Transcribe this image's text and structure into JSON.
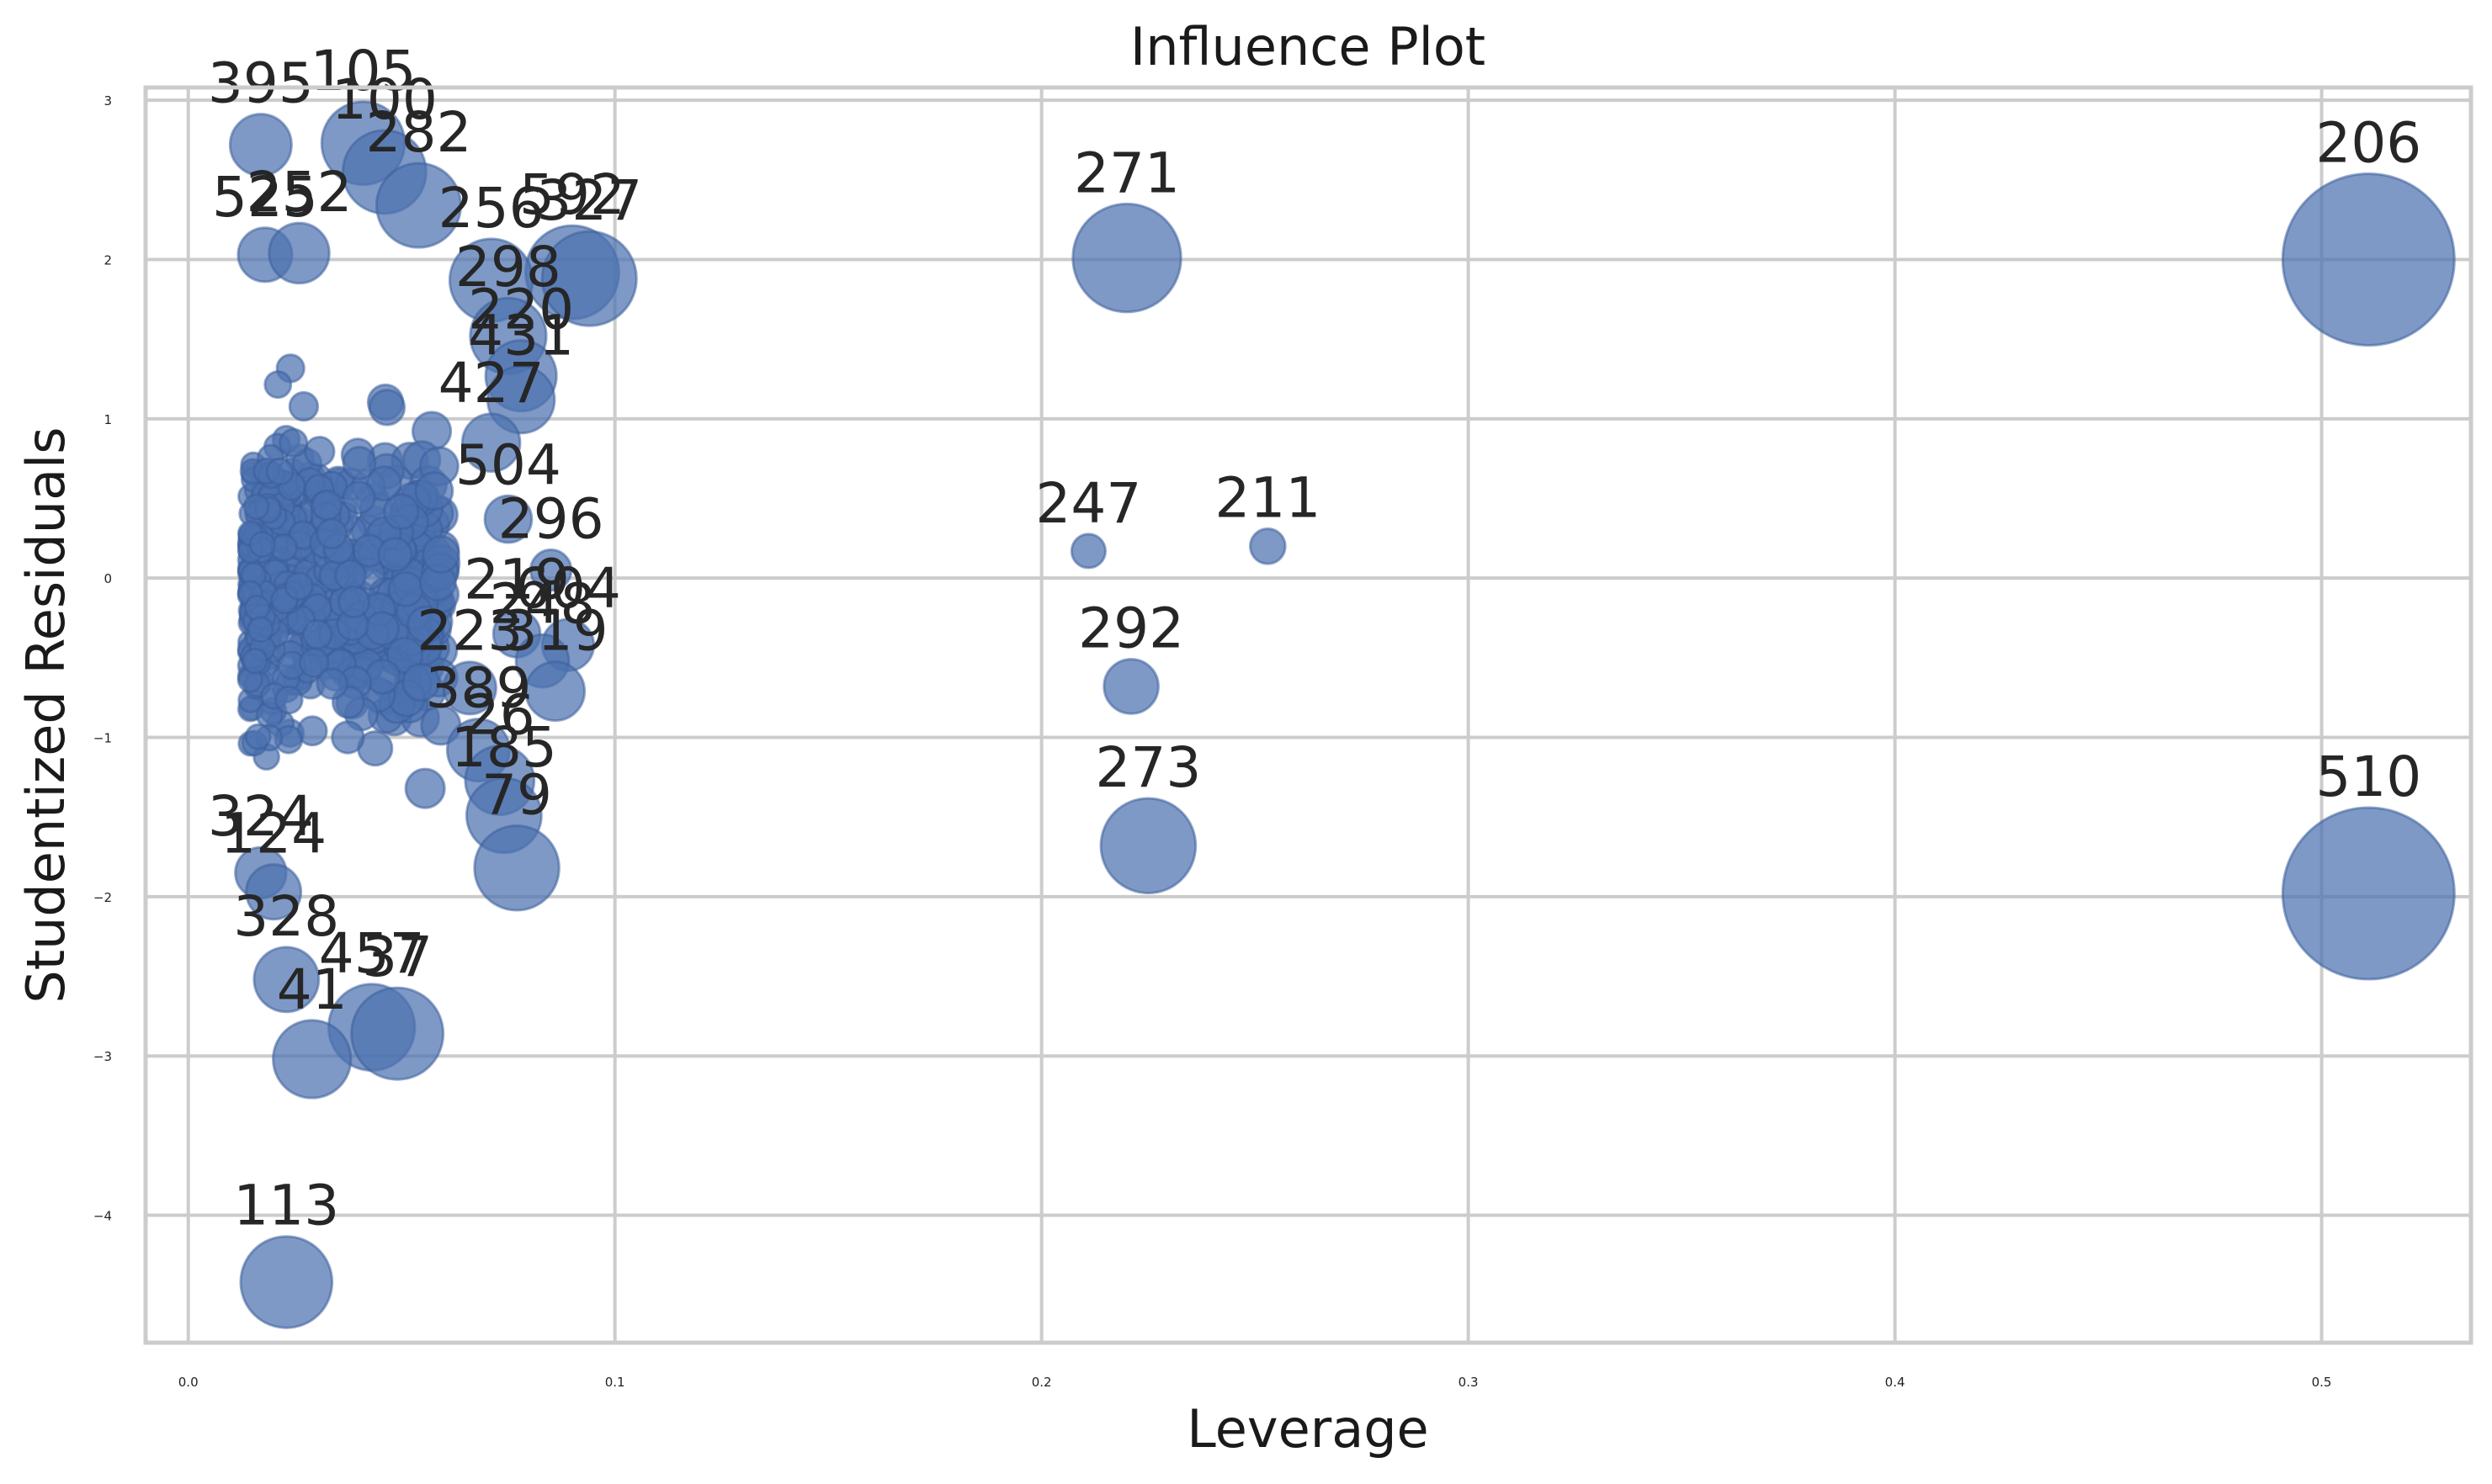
{
  "chart_data": {
    "type": "scatter",
    "title": "Influence Plot",
    "xlabel": "Leverage",
    "ylabel": "Studentized Residuals",
    "xlim": [
      -0.01,
      0.535
    ],
    "ylim": [
      -4.8,
      3.08
    ],
    "xticks": [
      "0.0",
      "0.1",
      "0.2",
      "0.3",
      "0.4",
      "0.5"
    ],
    "yticks": [
      "3",
      "2",
      "1",
      "0",
      "−1",
      "−2",
      "−3",
      "−4"
    ],
    "grid": true,
    "labeled_points": [
      {
        "label": "395",
        "x": 0.017,
        "y": 2.72
      },
      {
        "label": "105",
        "x": 0.041,
        "y": 2.73
      },
      {
        "label": "100",
        "x": 0.046,
        "y": 2.55
      },
      {
        "label": "282",
        "x": 0.054,
        "y": 2.34
      },
      {
        "label": "525",
        "x": 0.018,
        "y": 2.03
      },
      {
        "label": "252",
        "x": 0.026,
        "y": 2.04
      },
      {
        "label": "592",
        "x": 0.09,
        "y": 1.92
      },
      {
        "label": "327",
        "x": 0.094,
        "y": 1.88
      },
      {
        "label": "256",
        "x": 0.071,
        "y": 1.87
      },
      {
        "label": "271",
        "x": 0.22,
        "y": 2.01
      },
      {
        "label": "206",
        "x": 0.511,
        "y": 2.0
      },
      {
        "label": "298",
        "x": 0.075,
        "y": 1.52
      },
      {
        "label": "220",
        "x": 0.078,
        "y": 1.27
      },
      {
        "label": "431",
        "x": 0.078,
        "y": 1.12
      },
      {
        "label": "427",
        "x": 0.071,
        "y": 0.85
      },
      {
        "label": "504",
        "x": 0.075,
        "y": 0.37
      },
      {
        "label": "247",
        "x": 0.211,
        "y": 0.17
      },
      {
        "label": "211",
        "x": 0.253,
        "y": 0.2
      },
      {
        "label": "296",
        "x": 0.085,
        "y": 0.05
      },
      {
        "label": "219",
        "x": 0.077,
        "y": -0.35
      },
      {
        "label": "604",
        "x": 0.089,
        "y": -0.42
      },
      {
        "label": "248",
        "x": 0.083,
        "y": -0.52
      },
      {
        "label": "223",
        "x": 0.066,
        "y": -0.69
      },
      {
        "label": "319",
        "x": 0.086,
        "y": -0.71
      },
      {
        "label": "292",
        "x": 0.221,
        "y": -0.68
      },
      {
        "label": "389",
        "x": 0.068,
        "y": -1.08
      },
      {
        "label": "26",
        "x": 0.073,
        "y": -1.27
      },
      {
        "label": "185",
        "x": 0.074,
        "y": -1.49
      },
      {
        "label": "79",
        "x": 0.077,
        "y": -1.82
      },
      {
        "label": "273",
        "x": 0.225,
        "y": -1.68
      },
      {
        "label": "510",
        "x": 0.511,
        "y": -1.98
      },
      {
        "label": "324",
        "x": 0.017,
        "y": -1.85
      },
      {
        "label": "124",
        "x": 0.02,
        "y": -1.97
      },
      {
        "label": "328",
        "x": 0.023,
        "y": -2.52
      },
      {
        "label": "457",
        "x": 0.043,
        "y": -2.82
      },
      {
        "label": "37",
        "x": 0.049,
        "y": -2.86
      },
      {
        "label": "41",
        "x": 0.029,
        "y": -3.02
      },
      {
        "label": "113",
        "x": 0.023,
        "y": -4.42
      }
    ]
  }
}
